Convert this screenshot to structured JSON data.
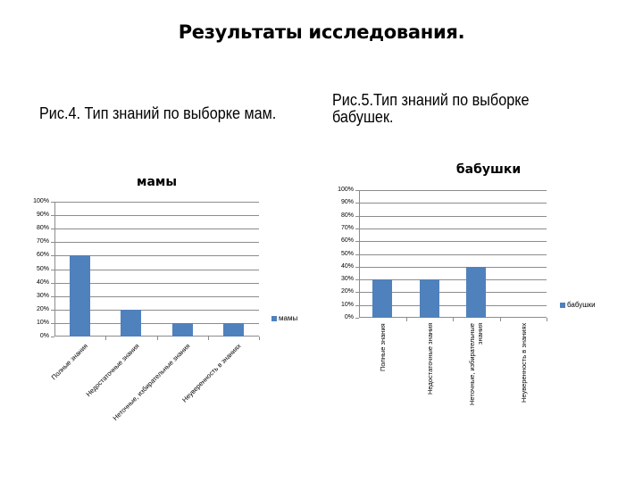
{
  "page": {
    "title": "Результаты исследования.",
    "caption_left": "Рис.4. Тип знаний по выборке мам.",
    "caption_right_line1": "Рис.5.Тип знаний по выборке",
    "caption_right_line2": "бабушек."
  },
  "colors": {
    "bar": "#4f81bd",
    "grid": "#8c8c8c"
  },
  "chart_data": [
    {
      "type": "bar",
      "title": "мамы",
      "categories": [
        "Полные знания",
        "Недостаточные знания",
        "Неточные, избирательные знания",
        "Неуверенность в знаниях"
      ],
      "series": [
        {
          "name": "мамы",
          "values": [
            60,
            20,
            10,
            10
          ]
        }
      ],
      "xlabel": "",
      "ylabel": "",
      "ylim": [
        0,
        100
      ],
      "yticks": [
        "0%",
        "10%",
        "20%",
        "30%",
        "40%",
        "50%",
        "60%",
        "70%",
        "80%",
        "90%",
        "100%"
      ],
      "grid": true,
      "legend_position": "right",
      "x_label_rotation": -45
    },
    {
      "type": "bar",
      "title": "бабушки",
      "categories": [
        "Полные знания",
        "Недостаточные знания",
        "Неточные, избирательные знания",
        "Неуверенность в знаниях"
      ],
      "series": [
        {
          "name": "бабушки",
          "values": [
            30,
            30,
            40,
            0
          ]
        }
      ],
      "xlabel": "",
      "ylabel": "",
      "ylim": [
        0,
        100
      ],
      "yticks": [
        "0%",
        "10%",
        "20%",
        "30%",
        "40%",
        "50%",
        "60%",
        "70%",
        "80%",
        "90%",
        "100%"
      ],
      "grid": true,
      "legend_position": "right",
      "x_label_rotation": -90
    }
  ]
}
